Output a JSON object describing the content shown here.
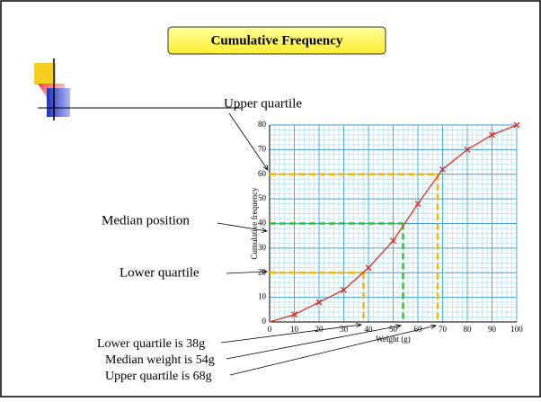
{
  "chart_data": {
    "type": "line",
    "title": "Cumulative Frequency",
    "x_label": "Weight (g)",
    "y_label": "Cumulative frequency",
    "x": [
      10,
      20,
      30,
      40,
      50,
      60,
      70,
      80,
      90,
      100
    ],
    "series": [
      {
        "name": "Cumulative frequency",
        "color": "#e03020",
        "values": [
          3,
          8,
          13,
          22,
          33,
          48,
          62,
          70,
          76,
          80
        ]
      }
    ],
    "xlim": [
      0,
      100
    ],
    "ylim": [
      0,
      80
    ],
    "xticks": [
      0,
      10,
      20,
      30,
      40,
      50,
      60,
      70,
      80,
      90,
      100
    ],
    "yticks": [
      0,
      10,
      20,
      30,
      40,
      50,
      60,
      70,
      80
    ],
    "grid": true,
    "reference_lines": [
      {
        "y": 20,
        "x": 38,
        "color": "#f5b800"
      },
      {
        "y": 40,
        "x": 54,
        "color": "#22cc22"
      },
      {
        "y": 60,
        "x": 68,
        "color": "#f5b800"
      }
    ],
    "annotations": [
      "Upper quartile",
      "Median position",
      "Lower quartile",
      "Lower quartile is 38g",
      "Median weight is 54g",
      "Upper quartile is 68g"
    ]
  }
}
